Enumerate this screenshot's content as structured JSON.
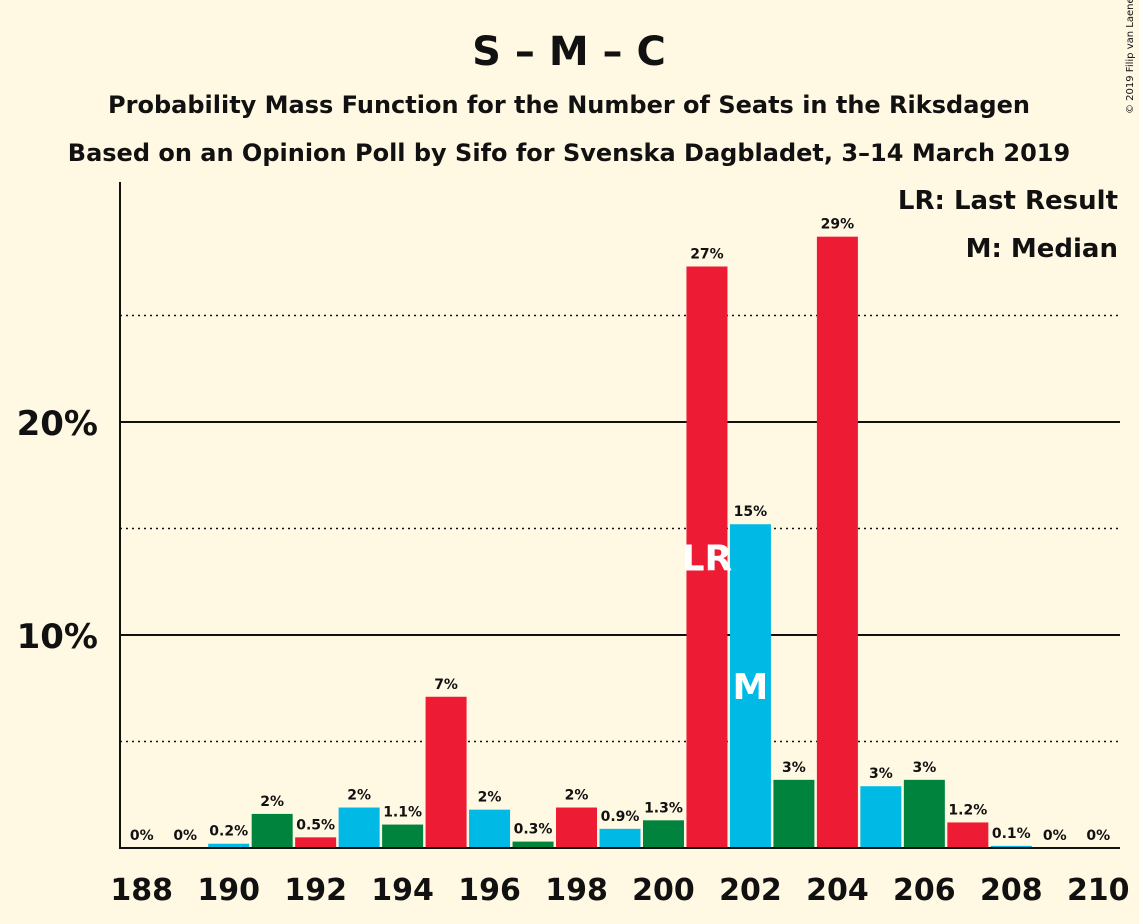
{
  "chart_data": {
    "type": "bar",
    "title": "S – M – C",
    "subtitle1": "Probability Mass Function for the Number of Seats in the Riksdagen",
    "subtitle2": "Based on an Opinion Poll by Sifo for Svenska Dagbladet, 3–14 March 2019",
    "copyright": "© 2019 Filip van Laenen",
    "legend": [
      "LR: Last Result",
      "M: Median"
    ],
    "xlabel": "",
    "ylabel": "",
    "ylim": [
      0,
      31
    ],
    "yticks": [
      {
        "value": 10,
        "label": "10%"
      },
      {
        "value": 20,
        "label": "20%"
      }
    ],
    "minor_gridlines": [
      5,
      15,
      25
    ],
    "xlim": [
      187.5,
      210.5
    ],
    "xticks": [
      188,
      190,
      192,
      194,
      196,
      198,
      200,
      202,
      204,
      206,
      208,
      210
    ],
    "colors": {
      "red": "#ed1b34",
      "blue": "#00b9e4",
      "green": "#00843d"
    },
    "bars": [
      {
        "seat": 188,
        "value": 0,
        "label": "0%",
        "color": "blue"
      },
      {
        "seat": 189,
        "value": 0,
        "label": "0%",
        "color": "green"
      },
      {
        "seat": 190,
        "value": 0.2,
        "label": "0.2%",
        "color": "blue"
      },
      {
        "seat": 191,
        "value": 1.6,
        "label": "2%",
        "color": "green"
      },
      {
        "seat": 192,
        "value": 0.5,
        "label": "0.5%",
        "color": "red"
      },
      {
        "seat": 193,
        "value": 1.9,
        "label": "2%",
        "color": "blue"
      },
      {
        "seat": 194,
        "value": 1.1,
        "label": "1.1%",
        "color": "green"
      },
      {
        "seat": 195,
        "value": 7.1,
        "label": "7%",
        "color": "red"
      },
      {
        "seat": 196,
        "value": 1.8,
        "label": "2%",
        "color": "blue"
      },
      {
        "seat": 197,
        "value": 0.3,
        "label": "0.3%",
        "color": "green"
      },
      {
        "seat": 198,
        "value": 1.9,
        "label": "2%",
        "color": "red"
      },
      {
        "seat": 199,
        "value": 0.9,
        "label": "0.9%",
        "color": "blue"
      },
      {
        "seat": 200,
        "value": 1.3,
        "label": "1.3%",
        "color": "green"
      },
      {
        "seat": 201,
        "value": 27.3,
        "label": "27%",
        "color": "red",
        "marker": "LR"
      },
      {
        "seat": 202,
        "value": 15.2,
        "label": "15%",
        "color": "blue",
        "marker": "M"
      },
      {
        "seat": 203,
        "value": 3.2,
        "label": "3%",
        "color": "green"
      },
      {
        "seat": 204,
        "value": 28.7,
        "label": "29%",
        "color": "red"
      },
      {
        "seat": 205,
        "value": 2.9,
        "label": "3%",
        "color": "blue"
      },
      {
        "seat": 206,
        "value": 3.2,
        "label": "3%",
        "color": "green"
      },
      {
        "seat": 207,
        "value": 1.2,
        "label": "1.2%",
        "color": "red"
      },
      {
        "seat": 208,
        "value": 0.1,
        "label": "0.1%",
        "color": "blue"
      },
      {
        "seat": 209,
        "value": 0,
        "label": "0%",
        "color": "green"
      },
      {
        "seat": 210,
        "value": 0,
        "label": "0%",
        "color": "red"
      }
    ]
  }
}
